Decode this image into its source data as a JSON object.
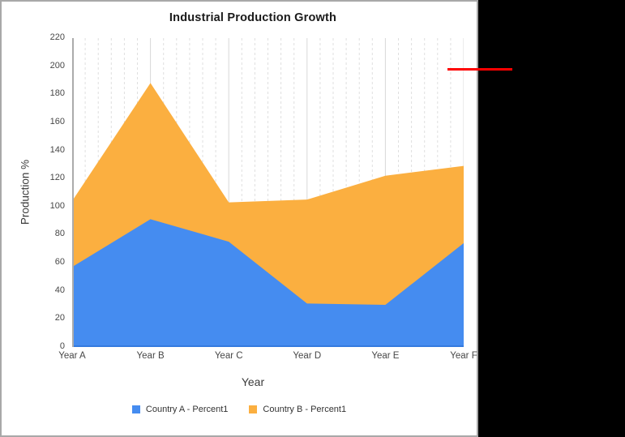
{
  "window": {
    "background": "#ffffff",
    "border_color": "#a8a8a8",
    "outside_color": "#000000"
  },
  "chart_data": {
    "type": "area",
    "title": "Industrial Production Growth",
    "xlabel": "Year",
    "ylabel": "Production %",
    "categories": [
      "Year A",
      "Year B",
      "Year C",
      "Year D",
      "Year E",
      "Year F"
    ],
    "series": [
      {
        "name": "Country A - Percent1",
        "color": "#458CF0",
        "values": [
          57,
          91,
          75,
          31,
          30,
          74
        ]
      },
      {
        "name": "Country B - Percent1",
        "color": "#FBAF40",
        "values": [
          104,
          188,
          103,
          105,
          122,
          129
        ]
      }
    ],
    "ylim": [
      0,
      220
    ],
    "ytick_step": 20,
    "grid": "vertical only: solid line at each category, 5 dashed minor lines between",
    "gridline_major_color": "#d8d8d8",
    "gridline_minor_color": "#dfdfdf",
    "axis_line_color": "#ababab",
    "baseline_color": "#3277dd",
    "legend_position": "bottom"
  },
  "annotation": {
    "red_line_color": "#fe0000"
  }
}
